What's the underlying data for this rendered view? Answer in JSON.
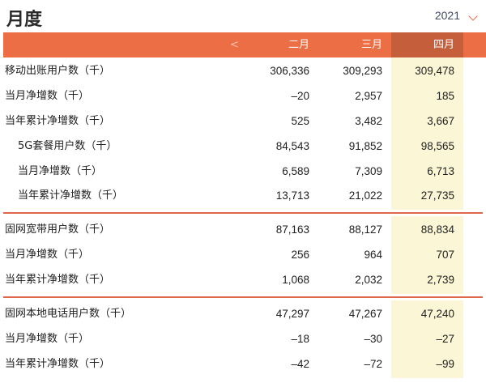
{
  "header": {
    "title": "月度",
    "year": "2021"
  },
  "table": {
    "prev_label": "<",
    "columns": [
      "二月",
      "三月",
      "四月"
    ],
    "rows": [
      {
        "label": "移动出账用户数（千）",
        "values": [
          "306,336",
          "309,293",
          "309,478"
        ]
      },
      {
        "label": "当月净增数（千）",
        "values": [
          "–20",
          "2,957",
          "185"
        ]
      },
      {
        "label": "当年累计净增数（千）",
        "values": [
          "525",
          "3,482",
          "3,667"
        ]
      },
      {
        "label": "5G套餐用户数（千）",
        "values": [
          "84,543",
          "91,852",
          "98,565"
        ]
      },
      {
        "label": "当月净增数（千）",
        "values": [
          "6,589",
          "7,309",
          "6,713"
        ]
      },
      {
        "label": "当年累计净增数（千）",
        "values": [
          "13,713",
          "21,022",
          "27,735"
        ]
      },
      {
        "label": "固网宽带用户数（千）",
        "values": [
          "87,163",
          "88,127",
          "88,834"
        ]
      },
      {
        "label": "当月净增数（千）",
        "values": [
          "256",
          "964",
          "707"
        ]
      },
      {
        "label": "当年累计净增数（千）",
        "values": [
          "1,068",
          "2,032",
          "2,739"
        ]
      },
      {
        "label": "固网本地电话用户数（千）",
        "values": [
          "47,297",
          "47,267",
          "47,240"
        ]
      },
      {
        "label": "当月净增数（千）",
        "values": [
          "–18",
          "–30",
          "–27"
        ]
      },
      {
        "label": "当年累计净增数（千）",
        "values": [
          "–42",
          "–72",
          "–99"
        ]
      }
    ]
  },
  "colors": {
    "accent": "#ec6e45",
    "active_column": "#c45e3b",
    "highlight": "#fbf6d6"
  }
}
